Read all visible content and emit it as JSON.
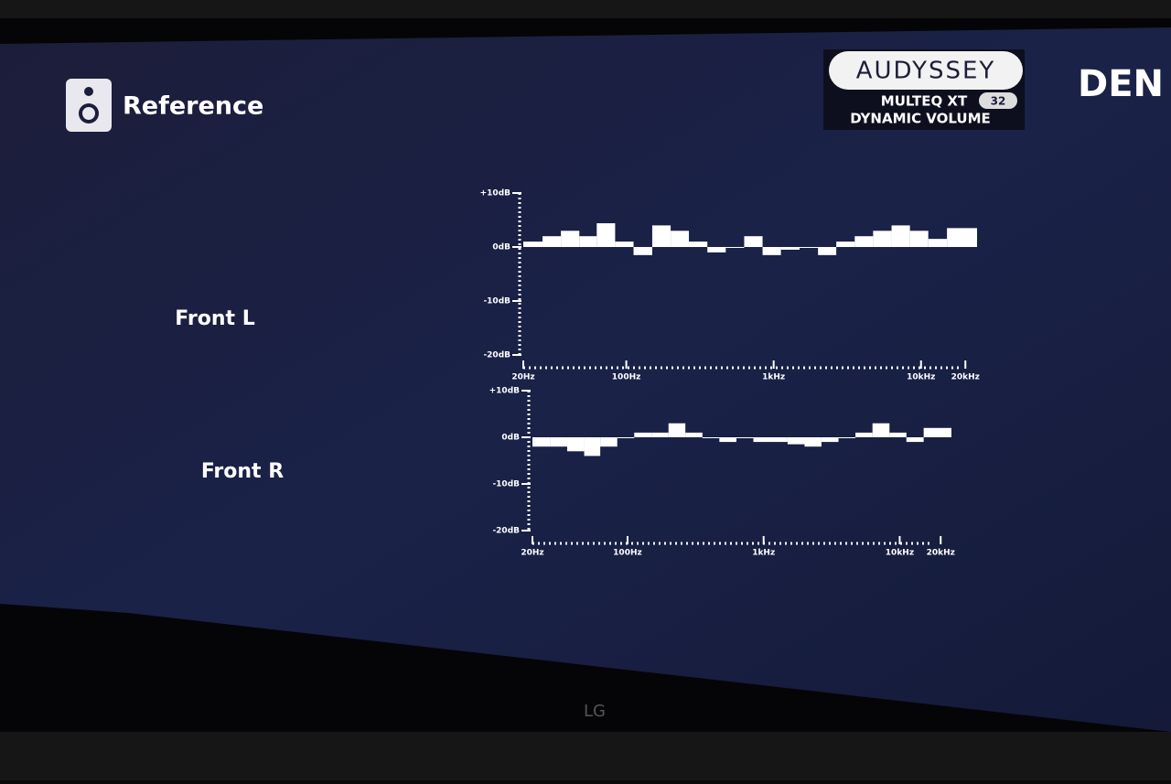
{
  "screen": {
    "title": "Reference",
    "brand": "DEN",
    "logo": {
      "name": "AUDYSSEY",
      "line1": "MULTEQ XT",
      "badge": "32",
      "line2": "DYNAMIC VOLUME"
    }
  },
  "bezel": {
    "maker": "LG"
  },
  "chart_data": [
    {
      "type": "bar",
      "title": "Front L",
      "log_x": true,
      "color": "#ffffff",
      "x": [
        20,
        27,
        36,
        48,
        63,
        84,
        112,
        150,
        200,
        266,
        355,
        473,
        631,
        841,
        1120,
        1500,
        2000,
        2660,
        3550,
        4730,
        6310,
        8410,
        11200,
        15000
      ],
      "values": [
        1,
        2,
        3,
        2,
        4.4,
        1,
        -1.5,
        4,
        3,
        1,
        -1,
        0,
        2,
        -1.5,
        -0.5,
        0,
        -1.5,
        1,
        2,
        3,
        4,
        3,
        1.5,
        3.5
      ],
      "xlim": [
        20,
        24000
      ],
      "ylim": [
        -20,
        10
      ],
      "yticks": [
        {
          "value": 10,
          "label": "+10dB"
        },
        {
          "value": 0,
          "label": "0dB"
        },
        {
          "value": -10,
          "label": "-10dB"
        },
        {
          "value": -20,
          "label": "-20dB"
        }
      ],
      "xticks": [
        {
          "value": 20,
          "label": "20Hz"
        },
        {
          "value": 100,
          "label": "100Hz"
        },
        {
          "value": 1000,
          "label": "1kHz"
        },
        {
          "value": 10000,
          "label": "10kHz"
        },
        {
          "value": 20000,
          "label": "20kHz"
        }
      ]
    },
    {
      "type": "bar",
      "title": "Front R",
      "log_x": true,
      "color": "#ffffff",
      "x": [
        20,
        27,
        36,
        48,
        63,
        84,
        112,
        150,
        200,
        266,
        355,
        473,
        631,
        841,
        1120,
        1500,
        2000,
        2660,
        3550,
        4730,
        6310,
        8410,
        11200,
        15000
      ],
      "values": [
        -2,
        -2,
        -3,
        -4,
        -2,
        0,
        1,
        1,
        3,
        1,
        0,
        -1,
        0,
        -1,
        -1,
        -1.5,
        -2,
        -1,
        0,
        1,
        3,
        1,
        -1,
        2
      ],
      "xlim": [
        20,
        24000
      ],
      "ylim": [
        -20,
        10
      ],
      "yticks": [
        {
          "value": 10,
          "label": "+10dB"
        },
        {
          "value": 0,
          "label": "0dB"
        },
        {
          "value": -10,
          "label": "-10dB"
        },
        {
          "value": -20,
          "label": "-20dB"
        }
      ],
      "xticks": [
        {
          "value": 20,
          "label": "20Hz"
        },
        {
          "value": 100,
          "label": "100Hz"
        },
        {
          "value": 1000,
          "label": "1kHz"
        },
        {
          "value": 10000,
          "label": "10kHz"
        },
        {
          "value": 20000,
          "label": "20kHz"
        }
      ]
    }
  ]
}
